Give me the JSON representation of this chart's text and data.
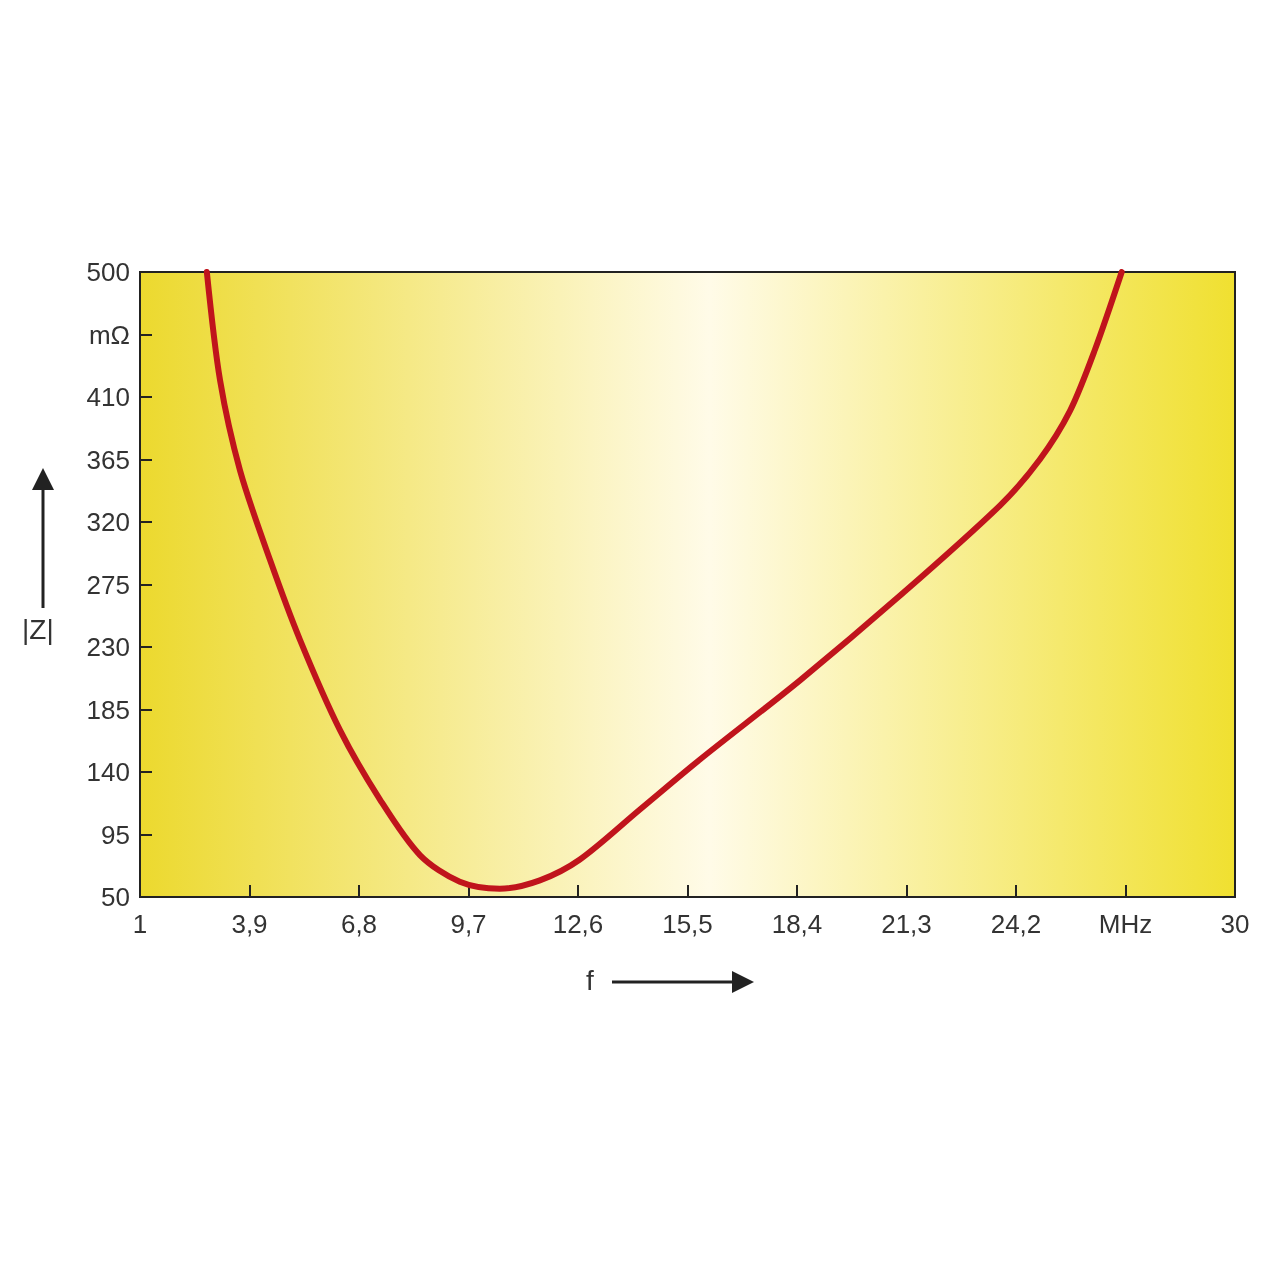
{
  "chart_data": {
    "type": "line",
    "xlabel": "f",
    "ylabel": "|Z|",
    "color": "#c0141c",
    "line_style": "solid",
    "marker": "none",
    "x": [
      2.77,
      3.12,
      3.65,
      4.44,
      5.24,
      6.3,
      7.36,
      8.42,
      9.47,
      10.53,
      11.59,
      12.65,
      14.24,
      15.83,
      18.48,
      21.13,
      23.78,
      24.83,
      25.63,
      26.29,
      27.0
    ],
    "values": [
      500,
      422,
      357,
      293,
      235,
      170,
      120,
      80,
      61,
      56,
      62,
      77,
      113,
      149,
      206,
      267,
      332,
      365,
      400,
      444,
      500
    ],
    "xlim": [
      1,
      30
    ],
    "xticks": [
      1,
      {
        "value": 3.9,
        "label": "3,9"
      },
      {
        "value": 6.8,
        "label": "6,8"
      },
      {
        "value": 9.7,
        "label": "9,7"
      },
      {
        "value": 12.6,
        "label": "12,6"
      },
      {
        "value": 15.5,
        "label": "15,5"
      },
      {
        "value": 18.4,
        "label": "18,4"
      },
      {
        "value": 21.3,
        "label": "21,3"
      },
      {
        "value": 24.2,
        "label": "24,2"
      },
      {
        "value": 27.1,
        "label": "MHz"
      },
      30
    ],
    "ylim": [
      50,
      500
    ],
    "yticks": [
      50,
      95,
      140,
      185,
      230,
      275,
      320,
      365,
      410,
      {
        "value": 455,
        "label": "mΩ"
      },
      500
    ]
  }
}
